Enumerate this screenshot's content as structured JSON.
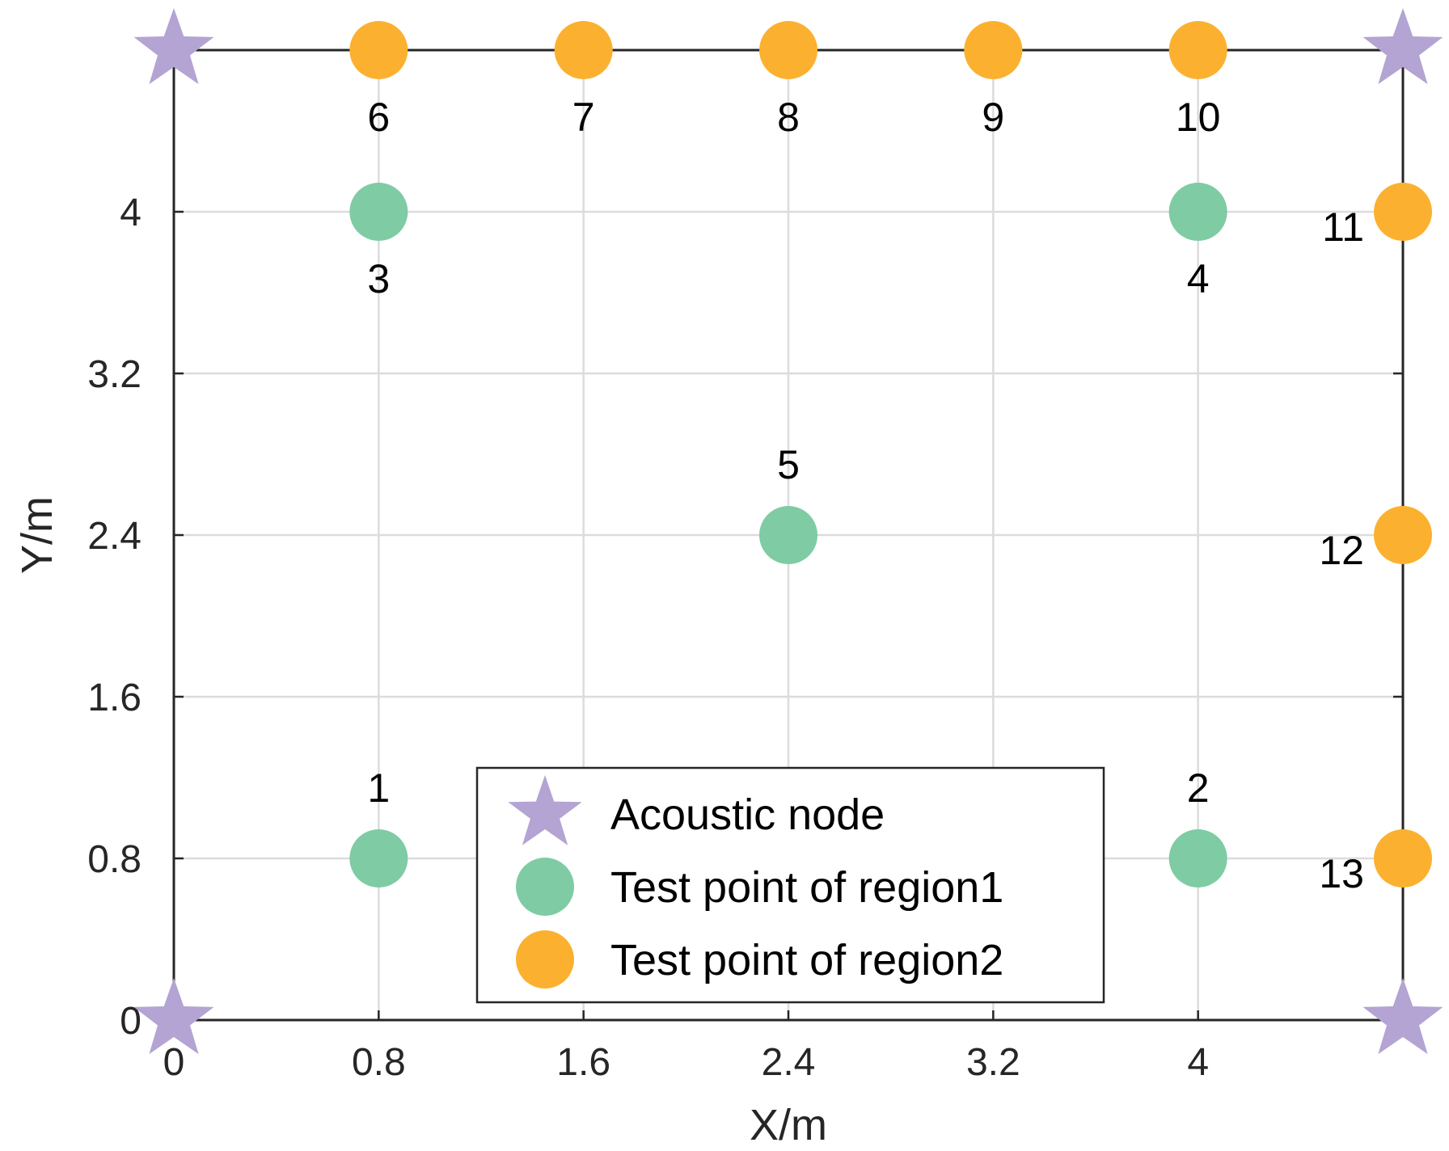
{
  "chart_data": {
    "type": "scatter",
    "title": "",
    "xlabel": "X/m",
    "ylabel": "Y/m",
    "xlim": [
      0,
      4.8
    ],
    "ylim": [
      0,
      4.8
    ],
    "xticks": [
      0,
      0.8,
      1.6,
      2.4,
      3.2,
      4
    ],
    "xtick_labels": [
      "0",
      "0.8",
      "1.6",
      "2.4",
      "3.2",
      "4"
    ],
    "yticks": [
      0,
      0.8,
      1.6,
      2.4,
      3.2,
      4
    ],
    "ytick_labels": [
      "0",
      "0.8",
      "1.6",
      "2.4",
      "3.2",
      "4"
    ],
    "grid": true,
    "legend_position": "bottom-center",
    "series": [
      {
        "name": "Acoustic node",
        "marker": "star",
        "color": "#b3a4d3",
        "points": [
          {
            "x": 0,
            "y": 0
          },
          {
            "x": 4.8,
            "y": 0
          },
          {
            "x": 0,
            "y": 4.8
          },
          {
            "x": 4.8,
            "y": 4.8
          }
        ]
      },
      {
        "name": "Test point of region1",
        "marker": "circle",
        "color": "#7fcba4",
        "points": [
          {
            "x": 0.8,
            "y": 0.8,
            "label": "1",
            "label_pos": "above"
          },
          {
            "x": 4.0,
            "y": 0.8,
            "label": "2",
            "label_pos": "above"
          },
          {
            "x": 0.8,
            "y": 4.0,
            "label": "3",
            "label_pos": "below"
          },
          {
            "x": 4.0,
            "y": 4.0,
            "label": "4",
            "label_pos": "below"
          },
          {
            "x": 2.4,
            "y": 2.4,
            "label": "5",
            "label_pos": "above"
          }
        ]
      },
      {
        "name": "Test point of region2",
        "marker": "circle",
        "color": "#fbb12f",
        "points": [
          {
            "x": 0.8,
            "y": 4.8,
            "label": "6",
            "label_pos": "below"
          },
          {
            "x": 1.6,
            "y": 4.8,
            "label": "7",
            "label_pos": "below"
          },
          {
            "x": 2.4,
            "y": 4.8,
            "label": "8",
            "label_pos": "below"
          },
          {
            "x": 3.2,
            "y": 4.8,
            "label": "9",
            "label_pos": "below"
          },
          {
            "x": 4.0,
            "y": 4.8,
            "label": "10",
            "label_pos": "below"
          },
          {
            "x": 4.8,
            "y": 4.0,
            "label": "11",
            "label_pos": "left"
          },
          {
            "x": 4.8,
            "y": 2.4,
            "label": "12",
            "label_pos": "left"
          },
          {
            "x": 4.8,
            "y": 0.8,
            "label": "13",
            "label_pos": "left"
          }
        ]
      }
    ]
  }
}
